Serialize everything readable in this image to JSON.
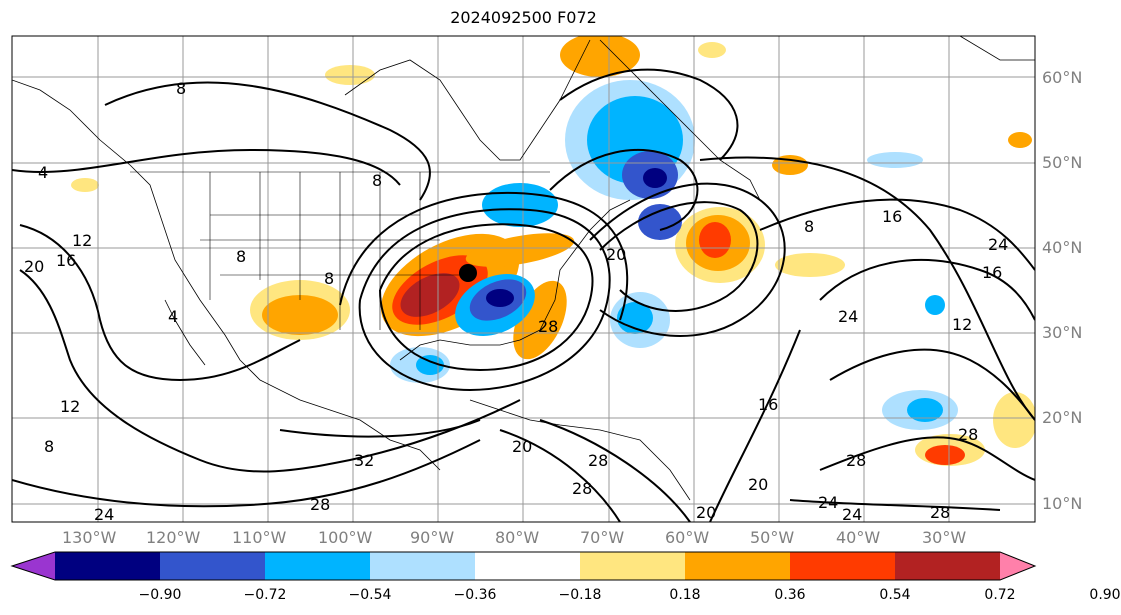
{
  "title": "2024092500 F072",
  "lon_labels": [
    "130°W",
    "120°W",
    "110°W",
    "100°W",
    "90°W",
    "80°W",
    "70°W",
    "60°W",
    "50°W",
    "40°W",
    "30°W"
  ],
  "lat_labels": [
    "60°N",
    "50°N",
    "40°N",
    "30°N",
    "20°N",
    "10°N"
  ],
  "colorbar": {
    "colors": [
      "#9a35d0",
      "#000080",
      "#3355cc",
      "#00b4ff",
      "#aee0ff",
      "#ffffff",
      "#ffe680",
      "#ffa500",
      "#ff3b00",
      "#b22222",
      "#ff80aa"
    ],
    "ticks": [
      "−0.90",
      "−0.72",
      "−0.54",
      "−0.36",
      "−0.18",
      "0.18",
      "0.36",
      "0.54",
      "0.72",
      "0.90"
    ]
  },
  "contour_labels": [
    "8",
    "4",
    "12",
    "20",
    "16",
    "4",
    "12",
    "8",
    "8",
    "8",
    "8",
    "20",
    "20",
    "16",
    "12",
    "8",
    "24",
    "16",
    "24",
    "28",
    "16",
    "28",
    "28",
    "32",
    "28",
    "28",
    "24",
    "20",
    "24",
    "24",
    "20",
    "28",
    "28"
  ]
}
